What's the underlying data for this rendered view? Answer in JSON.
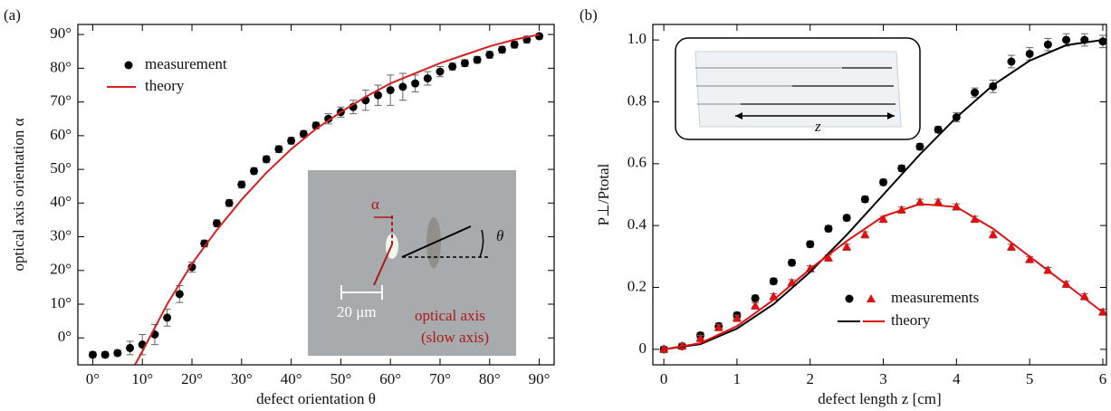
{
  "chart_data": [
    {
      "type": "scatter",
      "panel_label": "(a)",
      "x_label": "defect orientation θ",
      "y_label": "optical axis orientation α",
      "xlim": [
        -3,
        93
      ],
      "ylim": [
        -8,
        93
      ],
      "xticks": [
        {
          "value": 0,
          "label": "0°"
        },
        {
          "value": 10,
          "label": "10°"
        },
        {
          "value": 20,
          "label": "20°"
        },
        {
          "value": 30,
          "label": "30°"
        },
        {
          "value": 40,
          "label": "40°"
        },
        {
          "value": 50,
          "label": "50°"
        },
        {
          "value": 60,
          "label": "60°"
        },
        {
          "value": 70,
          "label": "70°"
        },
        {
          "value": 80,
          "label": "80°"
        },
        {
          "value": 90,
          "label": "90°"
        }
      ],
      "yticks": [
        {
          "value": 0,
          "label": "0°"
        },
        {
          "value": 10,
          "label": "10°"
        },
        {
          "value": 20,
          "label": "20°"
        },
        {
          "value": 30,
          "label": "30°"
        },
        {
          "value": 40,
          "label": "40°"
        },
        {
          "value": 50,
          "label": "50°"
        },
        {
          "value": 60,
          "label": "60°"
        },
        {
          "value": 70,
          "label": "70°"
        },
        {
          "value": 80,
          "label": "80°"
        },
        {
          "value": 90,
          "label": "90°"
        }
      ],
      "series": [
        {
          "name": "measurement",
          "style": "points",
          "marker": "circle",
          "color": "#000000",
          "x": [
            0,
            2.5,
            5,
            7.5,
            10,
            12.5,
            15,
            17.5,
            20,
            22.5,
            25,
            27.5,
            30,
            32.5,
            35,
            37.5,
            40,
            42.5,
            45,
            47.5,
            50,
            52.5,
            55,
            57.5,
            60,
            62.5,
            65,
            67.5,
            70,
            72.5,
            75,
            77.5,
            80,
            82.5,
            85,
            87.5,
            90
          ],
          "values": [
            -5,
            -5,
            -4.5,
            -3,
            -2,
            1,
            6,
            13,
            21,
            28,
            34,
            40,
            45.5,
            49.5,
            53,
            56,
            58.5,
            60.5,
            63,
            65,
            67,
            68.5,
            70.5,
            72,
            73.5,
            74.5,
            75.5,
            77,
            79,
            80.5,
            81.5,
            82.5,
            84,
            85.5,
            87,
            88.5,
            89.5
          ],
          "errors": [
            0.8,
            0.8,
            0.8,
            2,
            3,
            3,
            2.5,
            2.5,
            1.5,
            1,
            1,
            1,
            1,
            1,
            1,
            1,
            1,
            1,
            1,
            1.5,
            1.5,
            2,
            3,
            3,
            4.5,
            4,
            2.5,
            2,
            1.5,
            1,
            1,
            1,
            1,
            1,
            1,
            1,
            0.8
          ]
        },
        {
          "name": "theory",
          "style": "line",
          "color": "#d62020",
          "x": [
            8.5,
            10,
            12.5,
            15,
            17.5,
            20,
            25,
            30,
            35,
            40,
            45,
            50,
            55,
            60,
            65,
            70,
            75,
            80,
            85,
            90
          ],
          "values": [
            -8,
            -4,
            3,
            10,
            16,
            22,
            32,
            41,
            49,
            56,
            62,
            67,
            71.5,
            75.5,
            78.5,
            81.5,
            84,
            86.5,
            88.5,
            90
          ]
        }
      ],
      "annotations": [
        "α",
        "θ",
        "20 μm",
        "optical axis",
        "(slow axis)"
      ]
    },
    {
      "type": "scatter",
      "panel_label": "(b)",
      "x_label": "defect length z [cm]",
      "y_label": "P⊥/Ptotal",
      "xlim": [
        -0.15,
        6.05
      ],
      "ylim": [
        -0.05,
        1.05
      ],
      "xticks": [
        0,
        1,
        2,
        3,
        4,
        5,
        6
      ],
      "yticks": [
        0,
        0.2,
        0.4,
        0.6,
        0.8,
        {
          "value": 1,
          "label": "1.0"
        }
      ],
      "legend": [
        "measurements",
        "theory"
      ],
      "series": [
        {
          "style": "points",
          "marker": "circle",
          "color": "#000000",
          "x": [
            0,
            0.25,
            0.5,
            0.75,
            1,
            1.25,
            1.5,
            1.75,
            2,
            2.25,
            2.5,
            2.75,
            3,
            3.25,
            3.5,
            3.75,
            4,
            4.25,
            4.5,
            4.75,
            5,
            5.25,
            5.5,
            5.75,
            6
          ],
          "values": [
            0,
            0.01,
            0.045,
            0.075,
            0.11,
            0.165,
            0.22,
            0.28,
            0.34,
            0.39,
            0.425,
            0.485,
            0.54,
            0.585,
            0.655,
            0.71,
            0.75,
            0.83,
            0.85,
            0.93,
            0.955,
            0.985,
            1,
            1,
            0.995
          ],
          "errors": [
            0.01,
            0.01,
            0.01,
            0.01,
            0.01,
            0.01,
            0.01,
            0.01,
            0.01,
            0.01,
            0.01,
            0.01,
            0.01,
            0.01,
            0.01,
            0.01,
            0.015,
            0.015,
            0.02,
            0.02,
            0.02,
            0.02,
            0.02,
            0.02,
            0.02
          ]
        },
        {
          "style": "points",
          "marker": "triangle",
          "color": "#e01010",
          "x": [
            0,
            0.25,
            0.5,
            0.75,
            1,
            1.25,
            1.5,
            1.75,
            2,
            2.25,
            2.5,
            2.75,
            3,
            3.25,
            3.5,
            3.75,
            4,
            4.25,
            4.5,
            4.75,
            5,
            5.25,
            5.5,
            5.75,
            6
          ],
          "values": [
            0,
            0.01,
            0.035,
            0.07,
            0.1,
            0.14,
            0.17,
            0.215,
            0.26,
            0.295,
            0.33,
            0.37,
            0.42,
            0.45,
            0.475,
            0.475,
            0.46,
            0.42,
            0.37,
            0.33,
            0.29,
            0.255,
            0.21,
            0.17,
            0.12
          ],
          "errors": [
            0.01,
            0.01,
            0.01,
            0.01,
            0.01,
            0.01,
            0.01,
            0.01,
            0.01,
            0.01,
            0.01,
            0.01,
            0.01,
            0.01,
            0.01,
            0.01,
            0.01,
            0.01,
            0.01,
            0.01,
            0.01,
            0.01,
            0.01,
            0.01,
            0.01
          ]
        },
        {
          "style": "line",
          "color": "#000000",
          "x": [
            0,
            0.5,
            1,
            1.5,
            2,
            2.5,
            3,
            3.5,
            4,
            4.5,
            5,
            5.5,
            6
          ],
          "values": [
            0,
            0.017,
            0.067,
            0.146,
            0.25,
            0.37,
            0.5,
            0.63,
            0.75,
            0.854,
            0.933,
            0.983,
            1
          ]
        },
        {
          "style": "line",
          "color": "#e01010",
          "x": [
            0,
            0.5,
            1,
            1.5,
            2,
            2.5,
            3,
            3.5,
            4,
            4.5,
            5,
            5.5,
            6
          ],
          "values": [
            0,
            0.02,
            0.075,
            0.16,
            0.26,
            0.35,
            0.43,
            0.47,
            0.46,
            0.39,
            0.3,
            0.21,
            0.12
          ]
        }
      ],
      "annotations": [
        "z"
      ]
    }
  ]
}
